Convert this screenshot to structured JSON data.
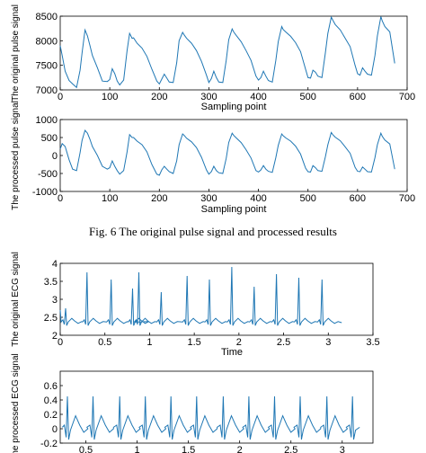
{
  "caption": "Fig. 6 The original pulse signal and processed results",
  "chart_data": [
    {
      "id": "pulse-original",
      "type": "line",
      "ylabel": "The original pulse signal",
      "xlabel": "Sampling point",
      "xlim": [
        0,
        700
      ],
      "ylim": [
        7000,
        8500
      ],
      "xticks": [
        0,
        100,
        200,
        300,
        400,
        500,
        600,
        700
      ],
      "yticks": [
        7000,
        7500,
        8000,
        8500
      ],
      "color": "#1f77b4",
      "x": [
        0,
        4,
        10,
        18,
        25,
        33,
        40,
        44,
        50,
        55,
        60,
        65,
        75,
        85,
        95,
        100,
        105,
        110,
        115,
        120,
        128,
        135,
        140,
        145,
        148,
        155,
        165,
        175,
        185,
        195,
        200,
        205,
        210,
        215,
        220,
        228,
        235,
        240,
        247,
        250,
        255,
        265,
        275,
        285,
        295,
        300,
        305,
        310,
        315,
        320,
        328,
        335,
        340,
        347,
        350,
        355,
        365,
        375,
        385,
        395,
        400,
        405,
        410,
        415,
        420,
        428,
        435,
        440,
        447,
        450,
        455,
        465,
        475,
        485,
        495,
        500,
        505,
        510,
        515,
        520,
        528,
        535,
        540,
        547,
        550,
        555,
        565,
        575,
        585,
        595,
        600,
        605,
        610,
        615,
        620,
        628,
        635,
        640,
        647,
        650,
        655,
        665,
        675
      ],
      "y": [
        7900,
        7700,
        7380,
        7190,
        7120,
        7050,
        7400,
        7750,
        8220,
        8100,
        7900,
        7700,
        7450,
        7180,
        7170,
        7210,
        7430,
        7330,
        7180,
        7100,
        7200,
        7800,
        8150,
        8050,
        8060,
        7950,
        7850,
        7680,
        7420,
        7180,
        7120,
        7220,
        7320,
        7240,
        7160,
        7150,
        7550,
        8000,
        8170,
        8120,
        8050,
        7950,
        7800,
        7580,
        7300,
        7150,
        7230,
        7380,
        7250,
        7160,
        7150,
        7600,
        8020,
        8240,
        8180,
        8110,
        7980,
        7800,
        7600,
        7280,
        7200,
        7250,
        7380,
        7280,
        7190,
        7160,
        7600,
        7980,
        8290,
        8230,
        8180,
        8090,
        7960,
        7780,
        7420,
        7250,
        7240,
        7400,
        7360,
        7280,
        7250,
        7750,
        8150,
        8480,
        8420,
        8330,
        8220,
        8050,
        7880,
        7500,
        7330,
        7300,
        7450,
        7380,
        7320,
        7300,
        7700,
        8100,
        8490,
        8400,
        8290,
        8180,
        7540
      ]
    },
    {
      "id": "pulse-processed",
      "type": "line",
      "ylabel": "The processed pulse signal",
      "xlabel": "Sampling point",
      "xlim": [
        0,
        700
      ],
      "ylim": [
        -1000,
        1000
      ],
      "xticks": [
        0,
        100,
        200,
        300,
        400,
        500,
        600,
        700
      ],
      "yticks": [
        -1000,
        -500,
        0,
        500,
        1000
      ],
      "color": "#1f77b4",
      "x": [
        0,
        4,
        10,
        18,
        25,
        33,
        40,
        44,
        50,
        55,
        60,
        65,
        75,
        85,
        95,
        100,
        105,
        110,
        115,
        120,
        128,
        135,
        140,
        145,
        148,
        155,
        165,
        175,
        185,
        195,
        200,
        205,
        210,
        215,
        220,
        228,
        235,
        240,
        247,
        250,
        255,
        265,
        275,
        285,
        295,
        300,
        305,
        310,
        315,
        320,
        328,
        335,
        340,
        347,
        350,
        355,
        365,
        375,
        385,
        395,
        400,
        405,
        410,
        415,
        420,
        428,
        435,
        440,
        447,
        450,
        455,
        465,
        475,
        485,
        495,
        500,
        505,
        510,
        515,
        520,
        528,
        535,
        540,
        547,
        550,
        555,
        565,
        575,
        585,
        595,
        600,
        605,
        610,
        615,
        620,
        628,
        635,
        640,
        647,
        650,
        655,
        665,
        675
      ],
      "y": [
        180,
        330,
        250,
        -120,
        -380,
        -420,
        80,
        420,
        700,
        620,
        450,
        250,
        0,
        -300,
        -380,
        -340,
        -150,
        -300,
        -420,
        -520,
        -420,
        100,
        580,
        500,
        500,
        400,
        300,
        100,
        -250,
        -520,
        -550,
        -400,
        -300,
        -380,
        -450,
        -500,
        -150,
        300,
        600,
        560,
        480,
        380,
        220,
        -50,
        -400,
        -520,
        -450,
        -300,
        -420,
        -480,
        -500,
        -80,
        360,
        620,
        560,
        490,
        360,
        160,
        -70,
        -420,
        -460,
        -400,
        -280,
        -380,
        -440,
        -470,
        -60,
        280,
        600,
        550,
        490,
        400,
        260,
        40,
        -350,
        -450,
        -460,
        -280,
        -340,
        -420,
        -440,
        -40,
        300,
        640,
        580,
        510,
        410,
        240,
        60,
        -330,
        -440,
        -450,
        -320,
        -380,
        -450,
        -460,
        -60,
        300,
        620,
        530,
        430,
        320,
        -380
      ]
    },
    {
      "id": "ecg-original",
      "type": "line",
      "ylabel": "The original ECG signal",
      "xlabel": "Time",
      "xlim": [
        0,
        3.5
      ],
      "ylim": [
        2,
        4
      ],
      "xticks": [
        0,
        0.5,
        1,
        1.5,
        2,
        2.5,
        3,
        3.5
      ],
      "yticks": [
        2,
        2.5,
        3,
        3.5,
        4
      ],
      "color": "#1f77b4",
      "x_end": 3.15,
      "baseline": 2.35,
      "beats": [
        {
          "t": 0.06,
          "peak": 2.75
        },
        {
          "t": 0.3,
          "peak": 3.75
        },
        {
          "t": 0.57,
          "peak": 3.55
        },
        {
          "t": 0.81,
          "peak": 3.3
        },
        {
          "t": 0.88,
          "peak": 3.75
        },
        {
          "t": 1.13,
          "peak": 3.2
        },
        {
          "t": 1.42,
          "peak": 3.65
        },
        {
          "t": 1.67,
          "peak": 3.55
        },
        {
          "t": 1.92,
          "peak": 3.9
        },
        {
          "t": 2.17,
          "peak": 3.35
        },
        {
          "t": 2.42,
          "peak": 3.7
        },
        {
          "t": 2.67,
          "peak": 3.6
        },
        {
          "t": 2.93,
          "peak": 3.55
        }
      ]
    },
    {
      "id": "ecg-processed",
      "type": "line",
      "ylabel": "The processed ECG signal",
      "xlim": [
        0.25,
        3.3
      ],
      "ylim": [
        -0.2,
        0.8
      ],
      "xticks": [
        0.5,
        1,
        1.5,
        2,
        2.5,
        3
      ],
      "xticklabels": [
        "0.5",
        "1",
        "1.5",
        "2",
        "2.5",
        "3"
      ],
      "yticks": [
        -0.2,
        0,
        0.2,
        0.4,
        0.6
      ],
      "color": "#1f77b4",
      "x_start": 0.27,
      "x_end": 3.17,
      "baseline": 0.0,
      "beats": [
        {
          "t": 0.32,
          "peak": 0.45
        },
        {
          "t": 0.57,
          "peak": 0.45
        },
        {
          "t": 0.83,
          "peak": 0.45
        },
        {
          "t": 1.08,
          "peak": 0.45
        },
        {
          "t": 1.33,
          "peak": 0.45
        },
        {
          "t": 1.58,
          "peak": 0.45
        },
        {
          "t": 1.84,
          "peak": 0.45
        },
        {
          "t": 2.09,
          "peak": 0.45
        },
        {
          "t": 2.34,
          "peak": 0.45
        },
        {
          "t": 2.59,
          "peak": 0.45
        },
        {
          "t": 2.85,
          "peak": 0.45
        },
        {
          "t": 3.1,
          "peak": 0.45
        }
      ]
    }
  ]
}
